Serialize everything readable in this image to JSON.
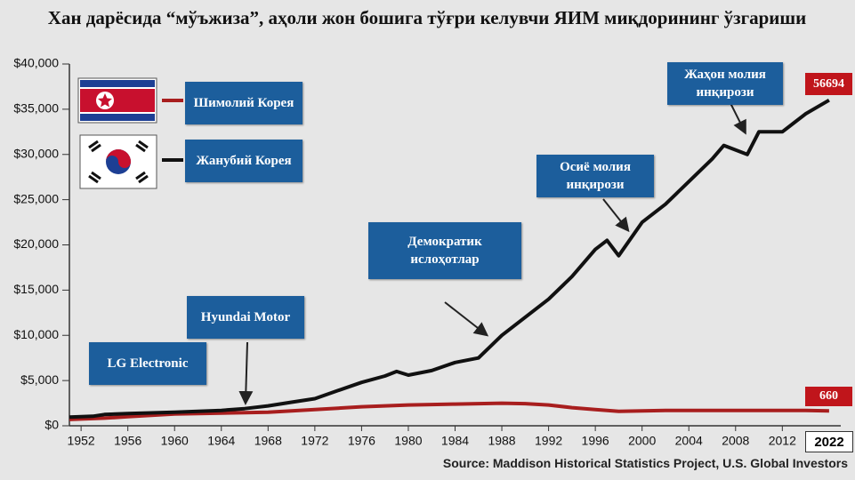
{
  "chart_data": {
    "type": "line",
    "title": "Хан дарёсида “мўъжиза”, аҳоли жон бошига тўғри келувчи ЯИМ миқдорининг ўзгариши",
    "x": [
      1951,
      1953,
      1954,
      1956,
      1960,
      1964,
      1966,
      1968,
      1970,
      1972,
      1974,
      1976,
      1978,
      1979,
      1980,
      1982,
      1984,
      1986,
      1988,
      1990,
      1992,
      1994,
      1996,
      1997,
      1998,
      2000,
      2002,
      2004,
      2006,
      2007,
      2009,
      2010,
      2012,
      2014,
      2016
    ],
    "series": [
      {
        "name": "Шимолий Корея",
        "color": "#a81e1e",
        "values": [
          700,
          800,
          850,
          1000,
          1300,
          1400,
          1450,
          1500,
          1650,
          1800,
          1950,
          2100,
          2200,
          2250,
          2300,
          2350,
          2400,
          2450,
          2500,
          2450,
          2300,
          2000,
          1800,
          1700,
          1600,
          1650,
          1700,
          1700,
          1700,
          1700,
          1700,
          1700,
          1700,
          1700,
          1650
        ]
      },
      {
        "name": "Жанубий Корея",
        "color": "#111111",
        "values": [
          950,
          1050,
          1250,
          1350,
          1500,
          1700,
          1900,
          2200,
          2600,
          3000,
          3900,
          4800,
          5500,
          6000,
          5600,
          6100,
          7000,
          7500,
          10000,
          12000,
          14000,
          16500,
          19500,
          20500,
          18800,
          22500,
          24500,
          27000,
          29500,
          31000,
          30000,
          32500,
          32500,
          34500,
          36000
        ]
      }
    ],
    "xlim": [
      1951,
      2017
    ],
    "xticks": [
      1952,
      1956,
      1960,
      1964,
      1968,
      1972,
      1976,
      1980,
      1984,
      1988,
      1992,
      1996,
      2000,
      2004,
      2008,
      2012
    ],
    "ylim": [
      0,
      40000
    ],
    "yticks": [
      {
        "value": 0,
        "label": "$0"
      },
      {
        "value": 5000,
        "label": "$5,000"
      },
      {
        "value": 10000,
        "label": "$10,000"
      },
      {
        "value": 15000,
        "label": "$15,000"
      },
      {
        "value": 20000,
        "label": "$20,000"
      },
      {
        "value": 25000,
        "label": "$25,000"
      },
      {
        "value": 30000,
        "label": "$30,000"
      },
      {
        "value": 35000,
        "label": "$35,000"
      },
      {
        "value": 40000,
        "label": "$40,000"
      }
    ],
    "annotations": [
      "LG Electronic",
      "Hyundai Motor",
      "Демократик ислоҳотлар",
      "Осиё молия инқирози",
      "Жаҳон молия инқирози"
    ],
    "end_labels": [
      "56694",
      "660"
    ],
    "end_x_label": "2022",
    "source": "Source: Maddison Historical Statistics Project, U.S. Global Investors"
  }
}
